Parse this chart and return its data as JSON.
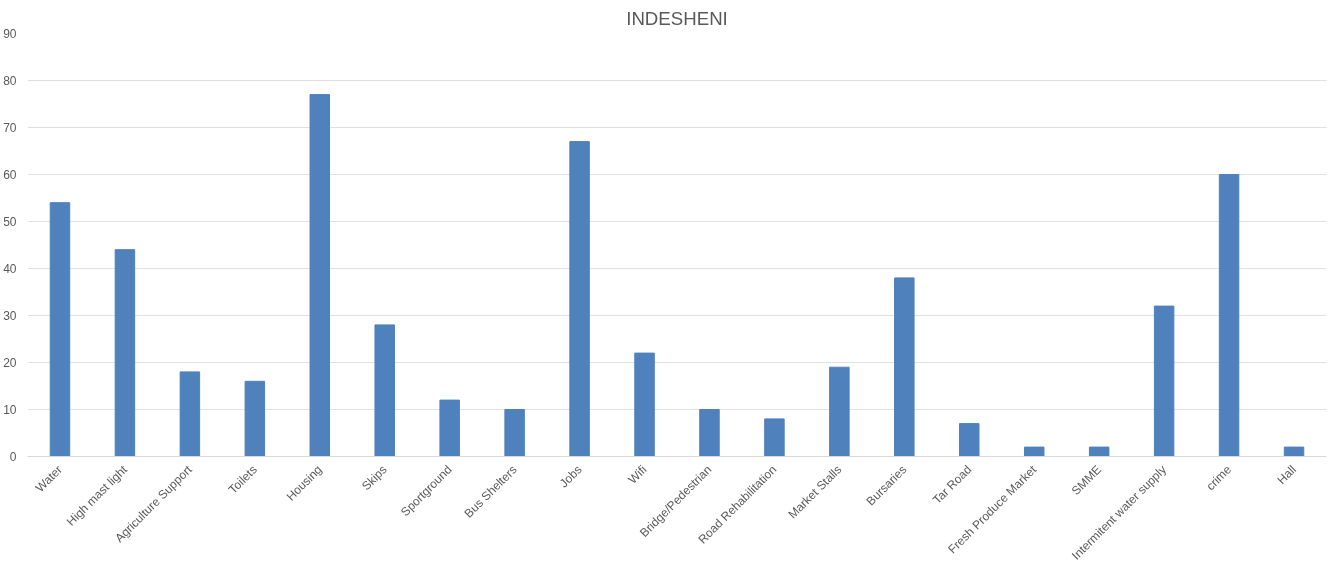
{
  "chart_data": {
    "type": "bar",
    "title": "INDESHENI",
    "categories": [
      "Water",
      "High mast light",
      "Agriculture Support",
      "Toilets",
      "Housing",
      "Skips",
      "Sportground",
      "Bus Shelters",
      "Jobs",
      "Wifi",
      "Bridge/Pedestrian",
      "Road Rehabilitation",
      "Market Stalls",
      "Bursaries",
      "Tar Road",
      "Fresh Produce Market",
      "SMME",
      "Intermitent water supply",
      "crime",
      "Hall"
    ],
    "values": [
      54,
      44,
      18,
      16,
      77,
      28,
      12,
      10,
      67,
      22,
      10,
      8,
      19,
      38,
      7,
      2,
      2,
      32,
      60,
      2
    ],
    "color": "#4f81bd",
    "ylim": [
      0,
      90
    ],
    "yticks": [
      0,
      10,
      20,
      30,
      40,
      50,
      60,
      70,
      80,
      90
    ],
    "grid": "y"
  }
}
